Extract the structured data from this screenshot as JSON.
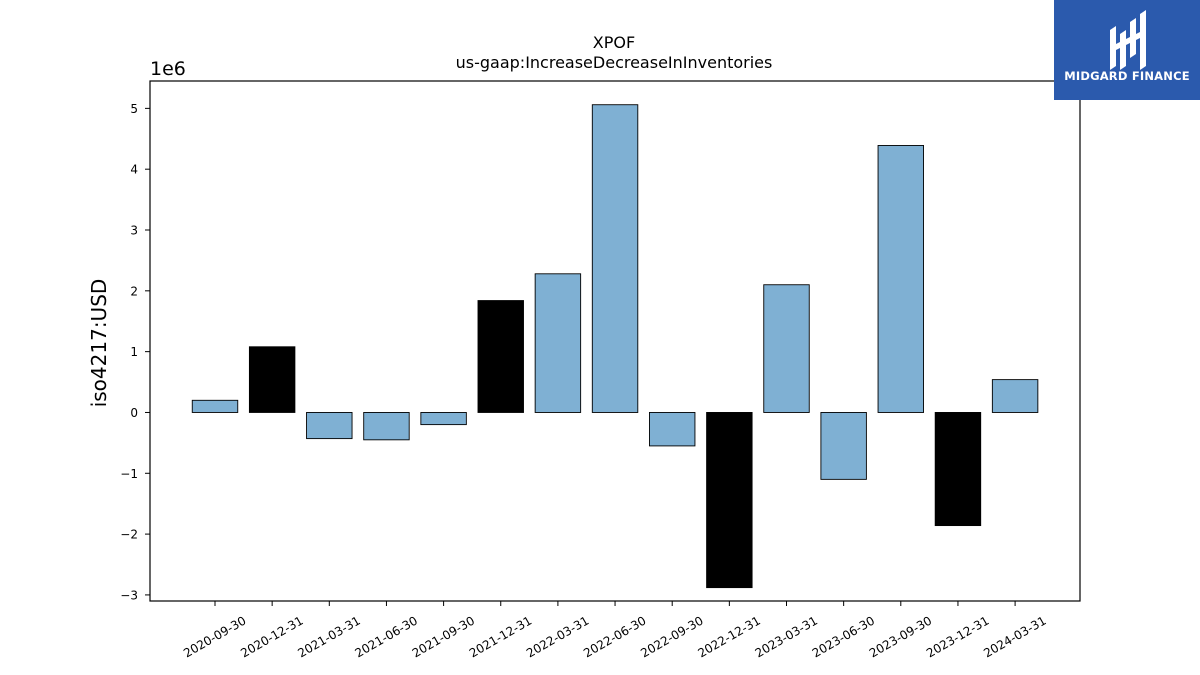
{
  "chart_data": {
    "type": "bar",
    "title": "XPOF",
    "subtitle": "us-gaap:IncreaseDecreaseInInventories",
    "xlabel": "",
    "ylabel": "iso4217:USD",
    "y_scale_label": "1e6",
    "ylim": [
      -3.1,
      5.45
    ],
    "y_ticks": [
      -3,
      -2,
      -1,
      0,
      1,
      2,
      3,
      4,
      5
    ],
    "grid": false,
    "categories": [
      "2020-09-30",
      "2020-12-31",
      "2021-03-31",
      "2021-06-30",
      "2021-09-30",
      "2021-12-31",
      "2022-03-31",
      "2022-06-30",
      "2022-09-30",
      "2022-12-31",
      "2023-03-31",
      "2023-06-30",
      "2023-09-30",
      "2023-12-31",
      "2024-03-31"
    ],
    "values": [
      0.2,
      1.08,
      -0.43,
      -0.45,
      -0.2,
      1.84,
      2.28,
      5.06,
      -0.55,
      -2.88,
      2.1,
      -1.1,
      4.39,
      -1.86,
      0.54
    ],
    "bar_kinds": [
      "q",
      "fy",
      "q",
      "q",
      "q",
      "fy",
      "q",
      "q",
      "q",
      "fy",
      "q",
      "q",
      "q",
      "fy",
      "q"
    ],
    "colors": {
      "q": "#7fb0d3",
      "fy": "#000000",
      "edge": "#000000"
    }
  },
  "logo": {
    "text": "MIDGARD FINANCE",
    "bg": "#2b5aad"
  }
}
